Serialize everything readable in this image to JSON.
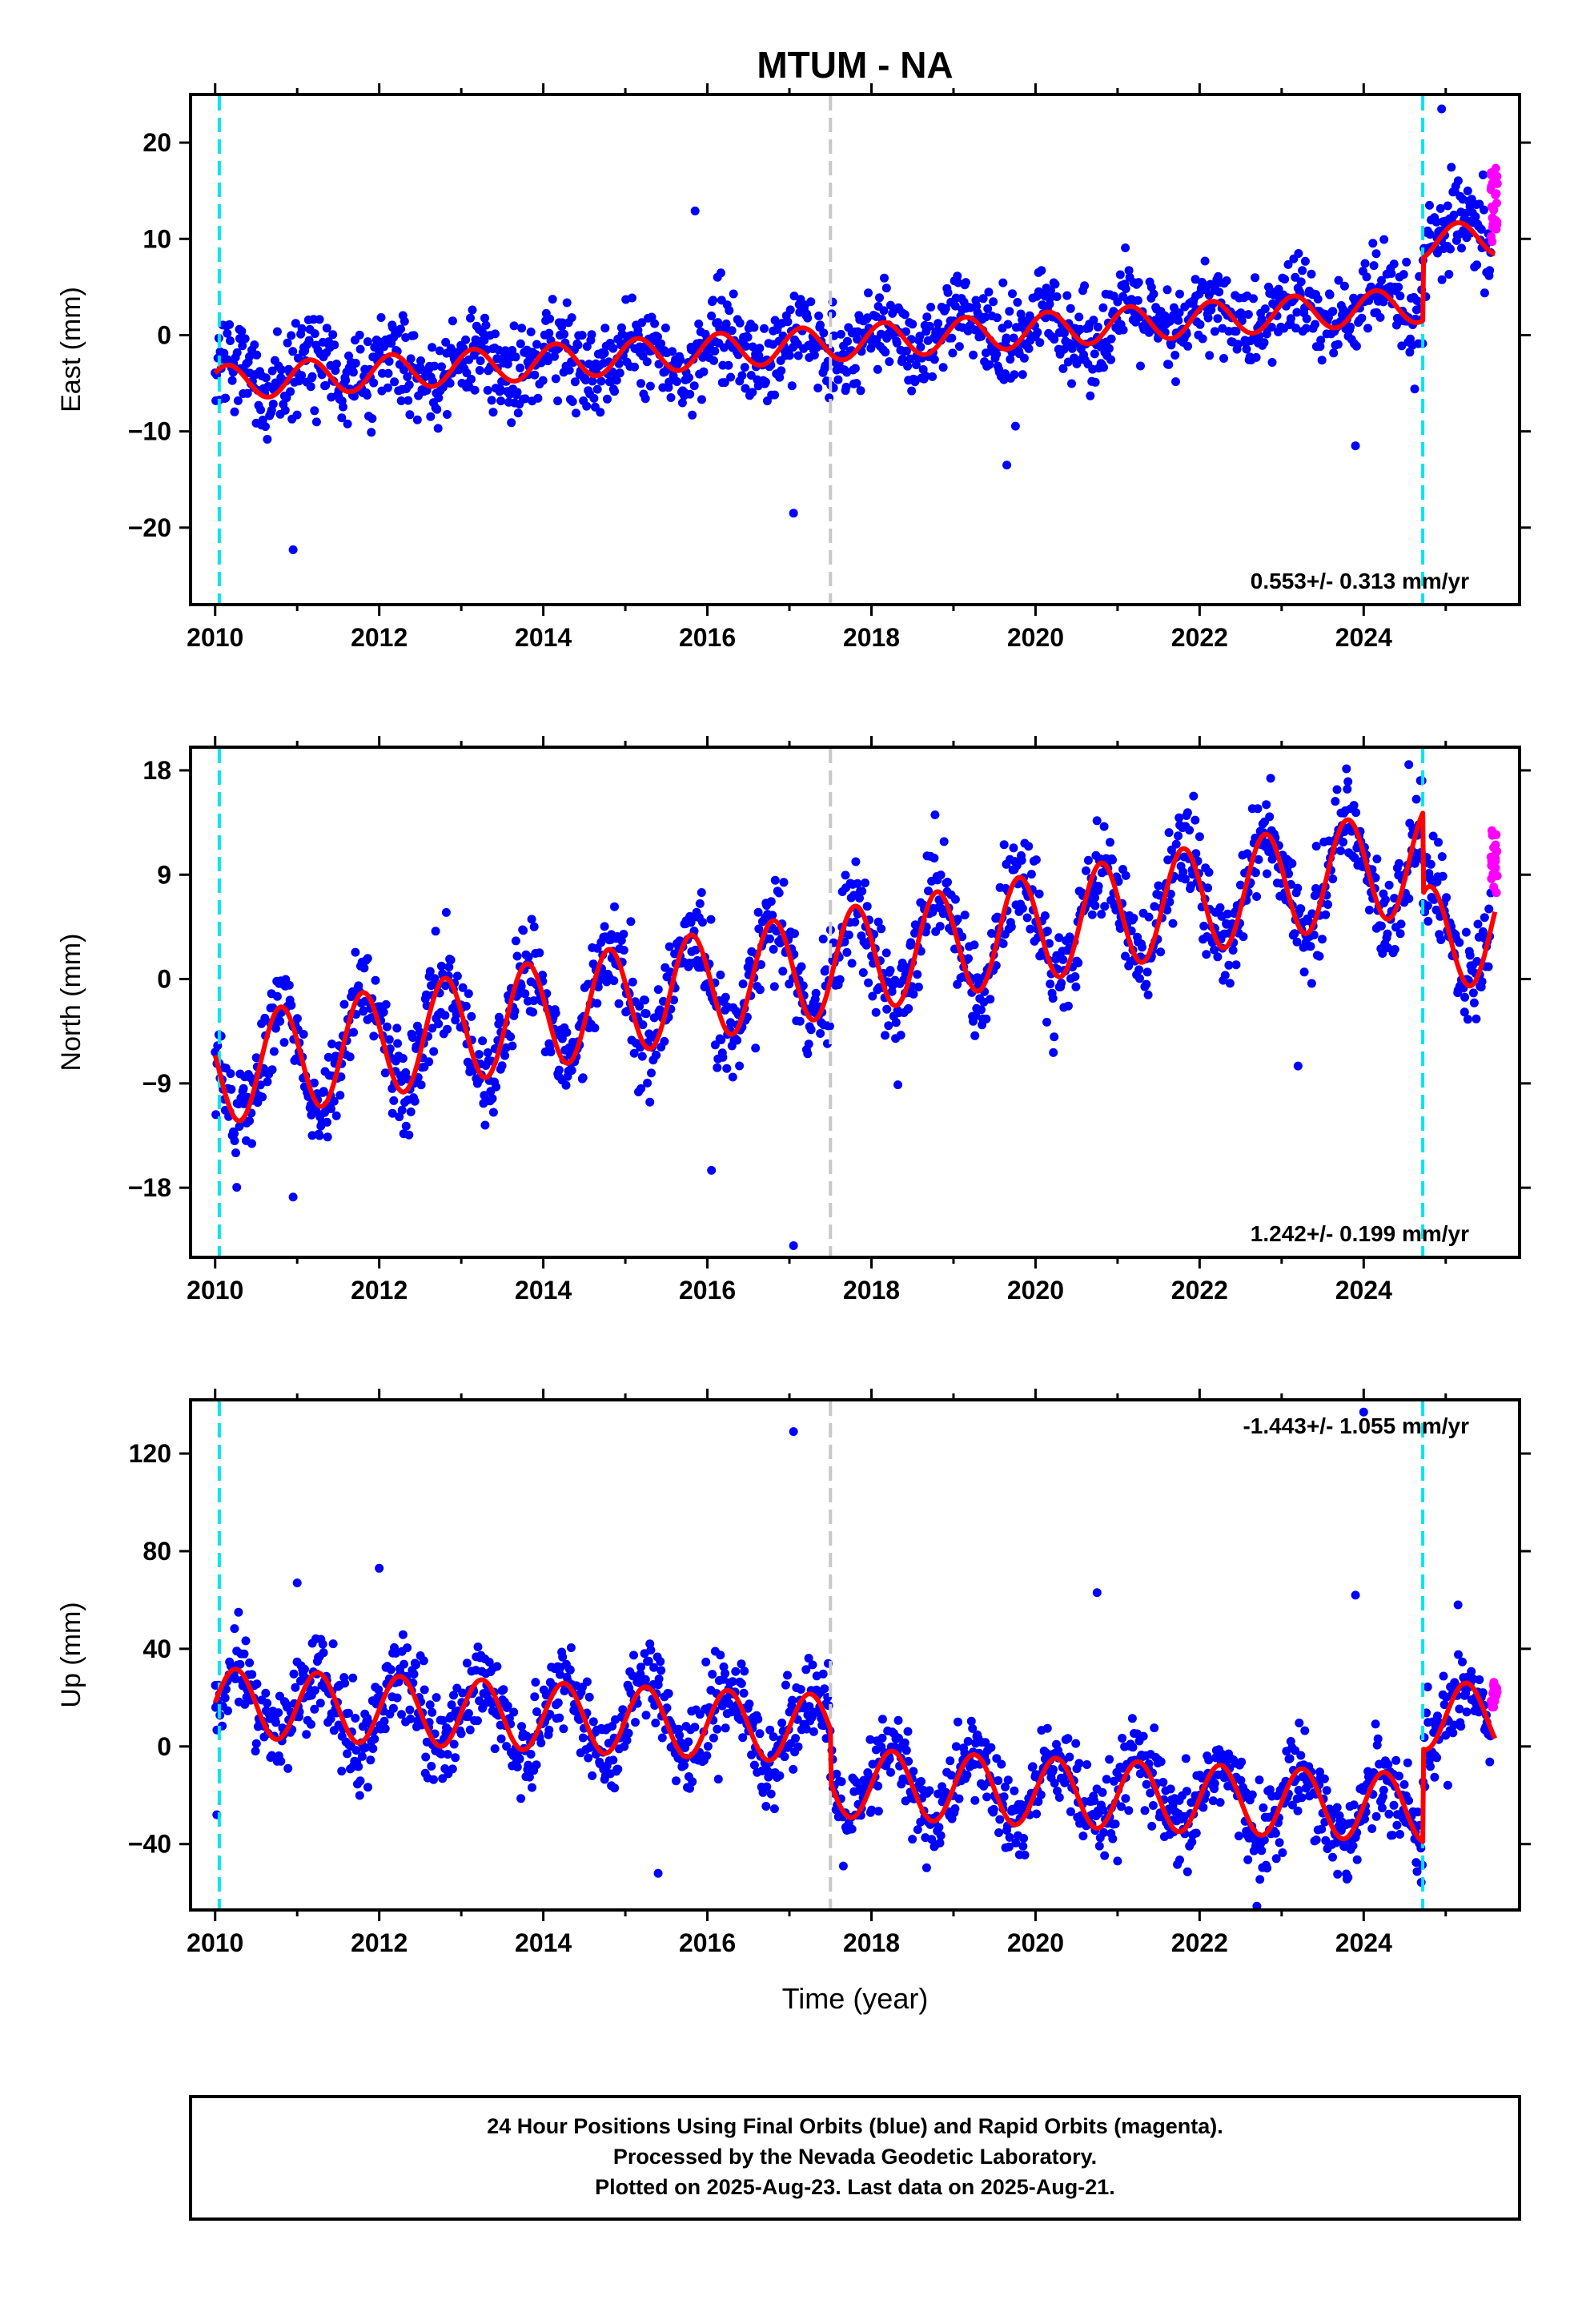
{
  "title": "MTUM - NA",
  "xlabel": "Time (year)",
  "footer": {
    "line1": "24 Hour Positions Using Final Orbits (blue) and Rapid Orbits (magenta).",
    "line2": "Processed by the Nevada Geodetic Laboratory.",
    "line3": "Plotted on 2025-Aug-23. Last data on 2025-Aug-21."
  },
  "colors": {
    "final_orbit_points": "#0000ff",
    "rapid_orbit_points": "#ff00ff",
    "model_fit": "#ff0000",
    "equipment_change": "#00e5ee",
    "earthquake_line": "#c8c8c8"
  },
  "chart_data": [
    {
      "type": "scatter",
      "ylabel": "East (mm)",
      "xlim": [
        2009.7,
        2025.9
      ],
      "ylim": [
        -28,
        25
      ],
      "yticks": [
        -20,
        -10,
        0,
        10,
        20
      ],
      "xticks": [
        2010,
        2012,
        2014,
        2016,
        2018,
        2020,
        2022,
        2024
      ],
      "grid": false,
      "rate_label": "0.553+/- 0.313 mm/yr",
      "rate_position": "bottom-right",
      "vertical_lines": [
        {
          "x": 2010.05,
          "kind": "equipment_change"
        },
        {
          "x": 2017.5,
          "kind": "earthquake"
        },
        {
          "x": 2024.72,
          "kind": "equipment_change"
        }
      ],
      "model": {
        "start": 2010.0,
        "end": 2025.6,
        "v0": -5.0,
        "rate": 0.553,
        "amp": 1.8,
        "phase": 0.9,
        "steps": [
          {
            "x": 2024.72,
            "dy": 6.5
          }
        ]
      },
      "noise": 2.3,
      "outliers": [
        [
          2010.95,
          -22.3
        ],
        [
          2015.85,
          12.9
        ],
        [
          2017.05,
          -18.5
        ],
        [
          2019.65,
          -13.5
        ],
        [
          2024.95,
          23.5
        ],
        [
          2023.9,
          -11.5
        ]
      ],
      "rapid": {
        "start": 2025.55,
        "end": 2025.63,
        "y": [
          9.5,
          17.5
        ]
      }
    },
    {
      "type": "scatter",
      "ylabel": "North (mm)",
      "xlim": [
        2009.7,
        2025.9
      ],
      "ylim": [
        -24,
        20
      ],
      "yticks": [
        -18,
        -9,
        0,
        9,
        18
      ],
      "xticks": [
        2010,
        2012,
        2014,
        2016,
        2018,
        2020,
        2022,
        2024
      ],
      "grid": false,
      "rate_label": "1.242+/- 0.199 mm/yr",
      "rate_position": "bottom-right",
      "vertical_lines": [
        {
          "x": 2010.05,
          "kind": "equipment_change"
        },
        {
          "x": 2017.5,
          "kind": "earthquake"
        },
        {
          "x": 2024.72,
          "kind": "equipment_change"
        }
      ],
      "model": {
        "start": 2010.0,
        "end": 2025.6,
        "v0": -8.0,
        "rate": 1.242,
        "amp": 4.6,
        "phase": 0.55,
        "steps": [
          {
            "x": 2024.72,
            "dy": -7.0
          }
        ]
      },
      "noise": 2.1,
      "outliers": [
        [
          2010.95,
          -18.8
        ],
        [
          2017.05,
          -23.0
        ],
        [
          2016.05,
          -16.5
        ],
        [
          2024.55,
          18.5
        ],
        [
          2023.2,
          -7.5
        ]
      ],
      "rapid": {
        "start": 2025.55,
        "end": 2025.63,
        "y": [
          7.0,
          13.0
        ]
      }
    },
    {
      "type": "scatter",
      "ylabel": "Up (mm)",
      "xlim": [
        2009.7,
        2025.9
      ],
      "ylim": [
        -67,
        142
      ],
      "yticks": [
        -40,
        0,
        40,
        80,
        120
      ],
      "xticks": [
        2010,
        2012,
        2014,
        2016,
        2018,
        2020,
        2022,
        2024
      ],
      "grid": false,
      "rate_label": "-1.443+/- 1.055 mm/yr",
      "rate_position": "top-right",
      "vertical_lines": [
        {
          "x": 2010.05,
          "kind": "equipment_change"
        },
        {
          "x": 2017.5,
          "kind": "earthquake"
        },
        {
          "x": 2024.72,
          "kind": "equipment_change"
        }
      ],
      "model": {
        "start": 2010.0,
        "end": 2025.6,
        "v0": 18.0,
        "rate": -1.443,
        "amp": 14.0,
        "phase": 0.0,
        "steps": [
          {
            "x": 2017.5,
            "dy": -22.0
          },
          {
            "x": 2024.72,
            "dy": 38.0
          }
        ]
      },
      "noise": 9.0,
      "outliers": [
        [
          2010.02,
          -28.0
        ],
        [
          2011.0,
          67.0
        ],
        [
          2012.0,
          73.0
        ],
        [
          2017.05,
          129.0
        ],
        [
          2020.75,
          63.0
        ],
        [
          2023.9,
          62.0
        ],
        [
          2024.0,
          137.0
        ],
        [
          2025.15,
          58.0
        ],
        [
          2015.4,
          -52.0
        ]
      ],
      "rapid": {
        "start": 2025.55,
        "end": 2025.63,
        "y": [
          16.0,
          27.0
        ]
      }
    }
  ]
}
